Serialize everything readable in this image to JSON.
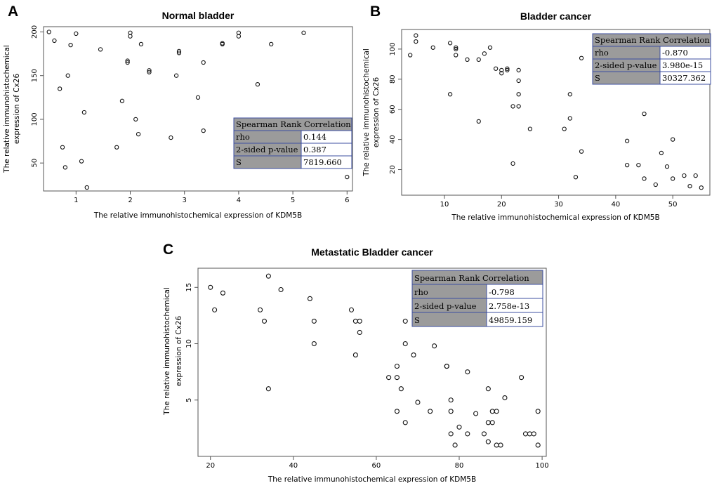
{
  "panels": [
    {
      "letter": "A"
    },
    {
      "letter": "B"
    },
    {
      "letter": "C"
    }
  ],
  "chart_data": [
    {
      "type": "scatter",
      "title": "Normal bladder",
      "xlabel": "The relative immunohistochemical expression of KDM5B",
      "ylabel_lines": [
        "The relative immunohistochemical",
        "expression of Cx26"
      ],
      "xlim": [
        0.4,
        6.1
      ],
      "ylim": [
        18,
        206
      ],
      "xticks": [
        1,
        2,
        3,
        4,
        5,
        6
      ],
      "yticks": [
        50,
        100,
        150,
        200
      ],
      "points": [
        [
          0.5,
          200
        ],
        [
          0.6,
          190
        ],
        [
          0.7,
          135
        ],
        [
          0.75,
          68
        ],
        [
          0.8,
          45
        ],
        [
          0.85,
          150
        ],
        [
          0.9,
          185
        ],
        [
          1.0,
          198
        ],
        [
          1.1,
          52
        ],
        [
          1.15,
          108
        ],
        [
          1.2,
          22
        ],
        [
          1.45,
          180
        ],
        [
          1.75,
          68
        ],
        [
          1.85,
          121
        ],
        [
          1.95,
          167
        ],
        [
          1.95,
          165
        ],
        [
          2.0,
          195
        ],
        [
          2.0,
          199
        ],
        [
          2.1,
          100
        ],
        [
          2.15,
          83
        ],
        [
          2.2,
          186
        ],
        [
          2.35,
          156
        ],
        [
          2.35,
          154
        ],
        [
          2.75,
          79
        ],
        [
          2.85,
          150
        ],
        [
          2.9,
          178
        ],
        [
          2.9,
          176
        ],
        [
          3.25,
          125
        ],
        [
          3.35,
          165
        ],
        [
          3.35,
          87
        ],
        [
          3.7,
          187
        ],
        [
          3.7,
          186
        ],
        [
          4.0,
          199
        ],
        [
          4.0,
          195
        ],
        [
          4.35,
          140
        ],
        [
          4.6,
          186
        ],
        [
          5.2,
          199
        ],
        [
          6.0,
          34
        ]
      ],
      "stats_table": {
        "header": "Spearman Rank Correlation",
        "rows": [
          [
            "rho",
            "0.144"
          ],
          [
            "2-sided p-value",
            "0.387"
          ],
          [
            "S",
            "7819.660"
          ]
        ]
      }
    },
    {
      "type": "scatter",
      "title": "Bladder cancer",
      "xlabel": "The relative immunohistochemical expression of KDM5B",
      "ylabel_lines": [
        "The relative immunohistochemical",
        "expression of Cx26"
      ],
      "xlim": [
        2.5,
        56.5
      ],
      "ylim": [
        3,
        113
      ],
      "xticks": [
        10,
        20,
        30,
        40,
        50
      ],
      "yticks": [
        20,
        40,
        60,
        80,
        100
      ],
      "points": [
        [
          4,
          96
        ],
        [
          5,
          105
        ],
        [
          5,
          109
        ],
        [
          8,
          101
        ],
        [
          11,
          104
        ],
        [
          11,
          70
        ],
        [
          12,
          101
        ],
        [
          12,
          100
        ],
        [
          12,
          96
        ],
        [
          14,
          93
        ],
        [
          16,
          93
        ],
        [
          16,
          52
        ],
        [
          17,
          97
        ],
        [
          18,
          101
        ],
        [
          19,
          87
        ],
        [
          20,
          84
        ],
        [
          20,
          86
        ],
        [
          21,
          87
        ],
        [
          21,
          86
        ],
        [
          22,
          62
        ],
        [
          22,
          24
        ],
        [
          23,
          86
        ],
        [
          23,
          79
        ],
        [
          23,
          70
        ],
        [
          23,
          62
        ],
        [
          25,
          47
        ],
        [
          31,
          47
        ],
        [
          32,
          70
        ],
        [
          32,
          54
        ],
        [
          33,
          15
        ],
        [
          34,
          94
        ],
        [
          34,
          32
        ],
        [
          42,
          39
        ],
        [
          42,
          23
        ],
        [
          44,
          23
        ],
        [
          45,
          57
        ],
        [
          45,
          14
        ],
        [
          47,
          10
        ],
        [
          48,
          31
        ],
        [
          49,
          22
        ],
        [
          50,
          40
        ],
        [
          50,
          14
        ],
        [
          52,
          16
        ],
        [
          53,
          9
        ],
        [
          54,
          16
        ],
        [
          55,
          8
        ]
      ],
      "stats_table": {
        "header": "Spearman Rank Correlation",
        "rows": [
          [
            "rho",
            "-0.870"
          ],
          [
            "2-sided p-value",
            "3.980e-15"
          ],
          [
            "S",
            "30327.362"
          ]
        ]
      }
    },
    {
      "type": "scatter",
      "title": "Metastatic Bladder cancer",
      "xlabel": "The relative immunohistochemical expression of KDM5B",
      "ylabel_lines": [
        "The relative immunohistochemical",
        "expression of Cx26"
      ],
      "xlim": [
        17,
        101
      ],
      "ylim": [
        0,
        16.7
      ],
      "xticks": [
        20,
        40,
        60,
        80,
        100
      ],
      "yticks": [
        5,
        10,
        15
      ],
      "points": [
        [
          20,
          15
        ],
        [
          21,
          13
        ],
        [
          23,
          14.5
        ],
        [
          32,
          13
        ],
        [
          33,
          12
        ],
        [
          34,
          16
        ],
        [
          34,
          6
        ],
        [
          37,
          14.8
        ],
        [
          44,
          14
        ],
        [
          45,
          12
        ],
        [
          45,
          10
        ],
        [
          54,
          13
        ],
        [
          55,
          12
        ],
        [
          55,
          9
        ],
        [
          56,
          12
        ],
        [
          56,
          11
        ],
        [
          63,
          7
        ],
        [
          65,
          8
        ],
        [
          65,
          7
        ],
        [
          65,
          4
        ],
        [
          66,
          6
        ],
        [
          67,
          12
        ],
        [
          67,
          10
        ],
        [
          67,
          3
        ],
        [
          69,
          9
        ],
        [
          70,
          4.8
        ],
        [
          73,
          4
        ],
        [
          74,
          9.8
        ],
        [
          77,
          8
        ],
        [
          77,
          8
        ],
        [
          78,
          5
        ],
        [
          78,
          4
        ],
        [
          78,
          2
        ],
        [
          79,
          1
        ],
        [
          80,
          2.6
        ],
        [
          82,
          2
        ],
        [
          82,
          7.5
        ],
        [
          84,
          3.8
        ],
        [
          86,
          2
        ],
        [
          87,
          6
        ],
        [
          87,
          3
        ],
        [
          87,
          1.3
        ],
        [
          88,
          4
        ],
        [
          88,
          3
        ],
        [
          89,
          4
        ],
        [
          89,
          1
        ],
        [
          90,
          1
        ],
        [
          91,
          5.2
        ],
        [
          95,
          7
        ],
        [
          96,
          2
        ],
        [
          97,
          2
        ],
        [
          98,
          2
        ],
        [
          99,
          4
        ],
        [
          99,
          1
        ]
      ],
      "stats_table": {
        "header": "Spearman Rank Correlation",
        "rows": [
          [
            "rho",
            "-0.798"
          ],
          [
            "2-sided p-value",
            "2.758e-13"
          ],
          [
            "S",
            "49859.159"
          ]
        ]
      }
    }
  ]
}
